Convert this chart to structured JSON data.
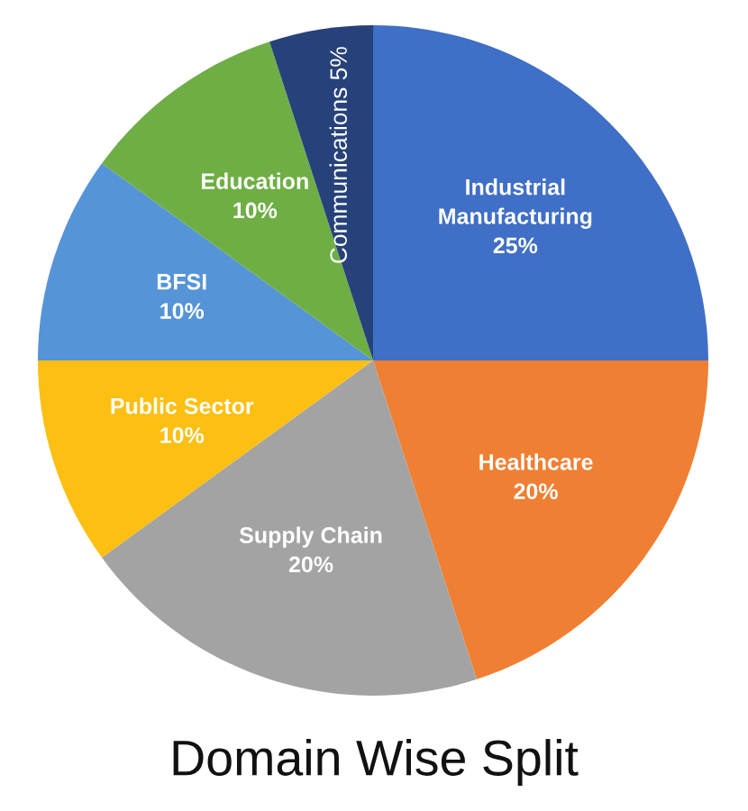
{
  "chart_data": {
    "type": "pie",
    "title": "Domain Wise Split",
    "categories": [
      "Industrial\nManufacturing",
      "Healthcare",
      "Supply Chain",
      "Public Sector",
      "BFSI",
      "Education",
      "Communications"
    ],
    "values": [
      25,
      20,
      20,
      10,
      10,
      10,
      5
    ],
    "value_labels": [
      "25%",
      "20%",
      "20%",
      "10%",
      "10%",
      "10%",
      "5%"
    ],
    "colors": [
      "#3f6fc6",
      "#ef7f33",
      "#a3a3a3",
      "#fcbf12",
      "#5594d6",
      "#6fae45",
      "#27427a"
    ]
  }
}
